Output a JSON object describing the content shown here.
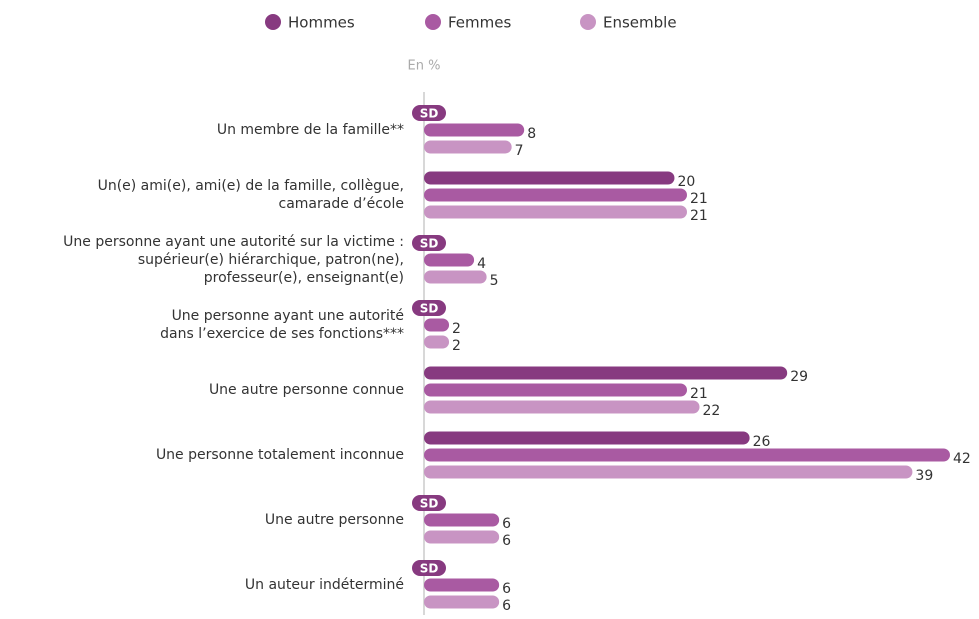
{
  "chart_data": {
    "type": "bar",
    "orientation": "horizontal",
    "unit_label": "En %",
    "categories": [
      [
        "Un membre de la famille**"
      ],
      [
        "Un(e) ami(e), ami(e) de la famille, collègue,",
        "camarade d’école"
      ],
      [
        "Une personne ayant une autorité sur la victime :",
        "supérieur(e) hiérarchique, patron(ne),",
        "professeur(e), enseignant(e)"
      ],
      [
        "Une personne ayant une autorité",
        "dans l’exercice de ses fonctions***"
      ],
      [
        "Une autre personne connue"
      ],
      [
        "Une personne totalement inconnue"
      ],
      [
        "Une autre personne"
      ],
      [
        "Un auteur indéterminé"
      ]
    ],
    "series": [
      {
        "name": "Hommes",
        "color": "#873a80",
        "values": [
          null,
          20,
          null,
          null,
          29,
          26,
          null,
          null
        ],
        "value_labels": [
          "SD",
          null,
          "SD",
          "SD",
          null,
          null,
          "SD",
          "SD"
        ]
      },
      {
        "name": "Femmes",
        "color": "#a95aa2",
        "values": [
          8,
          21,
          4,
          2,
          21,
          42,
          6,
          6
        ]
      },
      {
        "name": "Ensemble",
        "color": "#c894c3",
        "values": [
          7,
          21,
          5,
          2,
          22,
          39,
          6,
          6
        ]
      }
    ],
    "xlim": [
      0,
      42
    ],
    "legend": "top"
  }
}
